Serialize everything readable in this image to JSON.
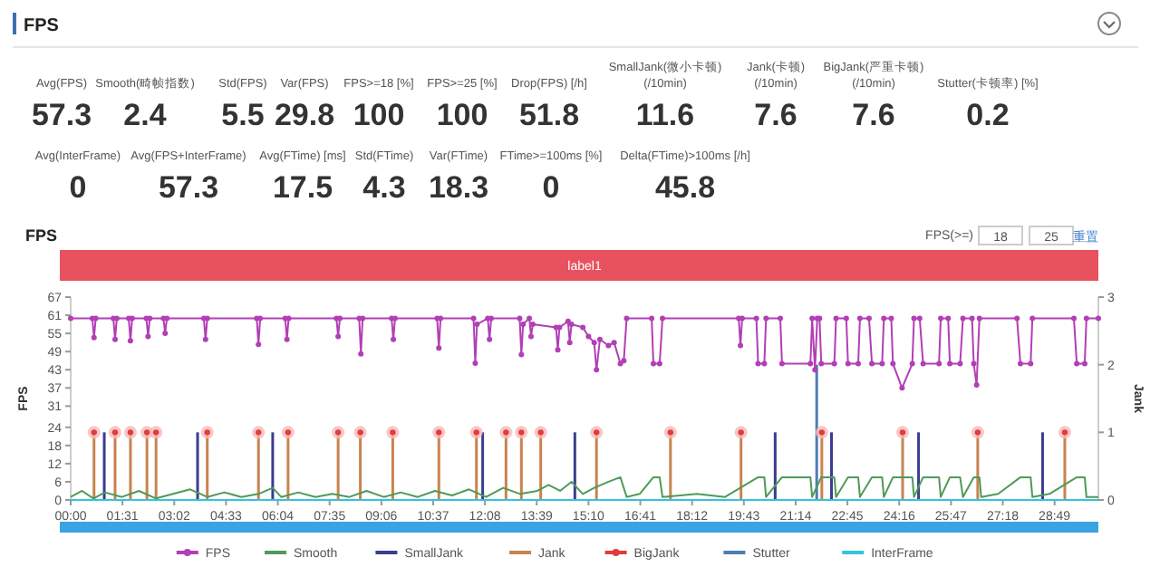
{
  "chart_data": [
    {
      "type": "other",
      "title": "FPS",
      "annotations": [
        "Avg(FPS)",
        "57.3",
        "Smooth(畸帧指数)",
        "2.4",
        "Std(FPS)",
        "5.5",
        "Var(FPS)",
        "29.8",
        "FPS>=18 [%]",
        "100",
        "FPS>=25 [%]",
        "100",
        "Drop(FPS) [/h]",
        "51.8",
        "SmallJank(微小卡顿)\n(/10min)",
        "11.6",
        "Jank(卡顿)\n(/10min)",
        "7.6",
        "BigJank(严重卡顿)\n(/10min)",
        "7.6",
        "Stutter(卡顿率) [%]",
        "0.2",
        "Avg(InterFrame)",
        "0",
        "Avg(FPS+InterFrame)",
        "57.3",
        "Avg(FTime) [ms]",
        "17.5",
        "Std(FTime)",
        "4.3",
        "Var(FTime)",
        "18.3",
        "FTime>=100ms [%]",
        "0",
        "Delta(FTime)>100ms [/h]",
        "45.8"
      ]
    },
    {
      "type": "line",
      "title": "FPS",
      "ylabel": "FPS",
      "y2label": "Jank",
      "legend": "bottom",
      "annotations": [
        "FPS(>=)",
        "18",
        "25",
        "重置",
        "label1"
      ],
      "xlim": [
        0,
        1806
      ],
      "xticks": [
        {
          "value": 0,
          "label": "00:00"
        },
        {
          "value": 91,
          "label": "01:31"
        },
        {
          "value": 182,
          "label": "03:02"
        },
        {
          "value": 273,
          "label": "04:33"
        },
        {
          "value": 364,
          "label": "06:04"
        },
        {
          "value": 455,
          "label": "07:35"
        },
        {
          "value": 546,
          "label": "09:06"
        },
        {
          "value": 637,
          "label": "10:37"
        },
        {
          "value": 728,
          "label": "12:08"
        },
        {
          "value": 819,
          "label": "13:39"
        },
        {
          "value": 910,
          "label": "15:10"
        },
        {
          "value": 1001,
          "label": "16:41"
        },
        {
          "value": 1092,
          "label": "18:12"
        },
        {
          "value": 1183,
          "label": "19:43"
        },
        {
          "value": 1274,
          "label": "21:14"
        },
        {
          "value": 1365,
          "label": "22:45"
        },
        {
          "value": 1456,
          "label": "24:16"
        },
        {
          "value": 1547,
          "label": "25:47"
        },
        {
          "value": 1638,
          "label": "27:18"
        },
        {
          "value": 1729,
          "label": "28:49"
        }
      ],
      "ylim": [
        0,
        67
      ],
      "yticks": [
        0,
        6,
        12,
        18,
        24,
        31,
        37,
        43,
        49,
        55,
        61,
        67
      ],
      "y2lim": [
        0,
        3
      ],
      "y2ticks": [
        0,
        1,
        2,
        3
      ],
      "series": [
        {
          "name": "FPS",
          "type": "line",
          "color": "#b23fb5",
          "marker": "circle",
          "x": [
            0,
            38,
            41,
            44,
            75,
            78,
            81,
            102,
            105,
            108,
            133,
            136,
            139,
            163,
            166,
            169,
            234,
            237,
            240,
            327,
            330,
            333,
            377,
            380,
            383,
            467,
            470,
            473,
            507,
            510,
            513,
            564,
            567,
            570,
            644,
            647,
            650,
            708,
            711,
            714,
            733,
            736,
            739,
            789,
            792,
            795,
            806,
            809,
            812,
            853,
            856,
            859,
            874,
            877,
            880,
            900,
            910,
            920,
            924,
            930,
            945,
            955,
            966,
            972,
            977,
            1021,
            1024,
            1035,
            1040,
            1174,
            1177,
            1180,
            1205,
            1208,
            1219,
            1222,
            1247,
            1250,
            1300,
            1303,
            1308,
            1312,
            1316,
            1319,
            1342,
            1345,
            1363,
            1366,
            1384,
            1387,
            1403,
            1408,
            1426,
            1429,
            1442,
            1445,
            1461,
            1479,
            1482,
            1492,
            1498,
            1526,
            1529,
            1542,
            1545,
            1563,
            1568,
            1584,
            1587,
            1592,
            1597,
            1663,
            1669,
            1687,
            1690,
            1763,
            1768,
            1782,
            1785,
            1806
          ],
          "values": [
            60,
            60,
            53.6,
            60,
            60,
            53,
            60,
            60,
            52.6,
            60,
            60,
            54,
            60,
            60,
            55,
            60,
            60,
            53,
            60,
            60,
            51.4,
            60,
            60,
            53,
            60,
            60,
            54,
            60,
            60,
            48.2,
            60,
            60,
            53,
            60,
            60,
            50.2,
            60,
            60,
            45.2,
            58,
            60,
            53,
            60,
            60,
            48,
            58,
            60,
            54,
            58,
            57,
            49.6,
            57,
            59,
            52,
            58,
            57,
            54,
            52,
            43,
            53,
            51,
            52,
            45,
            46,
            60,
            60,
            45,
            45,
            60,
            60,
            51,
            60,
            60,
            45,
            45,
            60,
            60,
            45,
            45,
            60,
            43,
            60,
            60,
            45,
            45,
            60,
            60,
            45,
            45,
            60,
            60,
            45,
            45,
            60,
            60,
            45,
            37,
            45,
            60,
            60,
            45,
            45,
            60,
            60,
            45,
            45,
            60,
            60,
            45,
            38,
            60,
            60,
            45,
            45,
            60,
            60,
            45,
            45,
            60,
            60
          ]
        },
        {
          "name": "Smooth",
          "type": "line",
          "color": "#4f9a58",
          "x": [
            0,
            20,
            40,
            60,
            90,
            120,
            150,
            180,
            210,
            240,
            270,
            300,
            330,
            355,
            370,
            400,
            430,
            460,
            490,
            520,
            550,
            580,
            610,
            640,
            670,
            700,
            730,
            760,
            790,
            820,
            840,
            860,
            880,
            900,
            920,
            945,
            966,
            977,
            1000,
            1024,
            1035,
            1040,
            1100,
            1150,
            1208,
            1219,
            1222,
            1250,
            1300,
            1303,
            1319,
            1342,
            1345,
            1366,
            1384,
            1387,
            1408,
            1426,
            1429,
            1445,
            1479,
            1482,
            1498,
            1526,
            1529,
            1545,
            1563,
            1568,
            1587,
            1597,
            1600,
            1630,
            1669,
            1687,
            1690,
            1720,
            1768,
            1782,
            1785,
            1806
          ],
          "values": [
            1,
            3,
            0.5,
            2.5,
            1,
            3,
            0.5,
            2,
            3.5,
            1,
            2.5,
            1,
            2,
            4,
            1,
            2.5,
            1,
            2,
            1,
            3,
            1,
            2.5,
            1,
            3,
            1.5,
            3.5,
            1,
            4,
            2,
            3,
            5,
            3,
            6,
            2,
            4,
            6,
            7.5,
            1,
            2,
            7.5,
            7.5,
            1,
            2,
            1,
            7.5,
            7.5,
            1,
            7.5,
            7.5,
            1,
            7.5,
            7.5,
            1,
            7.5,
            7.5,
            1,
            7.5,
            7.5,
            1,
            7.5,
            7.5,
            1,
            7.5,
            7.5,
            1,
            7.5,
            7.5,
            1,
            7.5,
            7.5,
            1,
            2,
            7.5,
            7.5,
            1,
            2,
            7.5,
            7.5,
            1,
            1
          ]
        },
        {
          "name": "SmallJank",
          "type": "bar",
          "axis": "y2",
          "color": "#3b3d8e",
          "x": [
            59,
            223,
            355,
            724,
            886,
            1238,
            1337,
            1490,
            1708
          ],
          "values": [
            1,
            1,
            1,
            1,
            1,
            1,
            1,
            1,
            1
          ]
        },
        {
          "name": "Jank",
          "type": "bar",
          "axis": "y2",
          "color": "#c9834f",
          "x": [
            41,
            78,
            105,
            134,
            150,
            240,
            330,
            382,
            470,
            509,
            566,
            647,
            713,
            765,
            792,
            826,
            924,
            1054,
            1178,
            1320,
            1462,
            1594,
            1747
          ],
          "values": [
            1,
            1,
            1,
            1,
            1,
            1,
            1,
            1,
            1,
            1,
            1,
            1,
            1,
            1,
            1,
            1,
            1,
            1,
            1,
            1,
            1,
            1,
            1
          ]
        },
        {
          "name": "BigJank",
          "type": "scatter",
          "axis": "y2",
          "color": "#e23b3b",
          "marker": "circle",
          "x": [
            41,
            78,
            105,
            134,
            150,
            240,
            330,
            382,
            470,
            509,
            566,
            647,
            713,
            765,
            792,
            826,
            924,
            1054,
            1178,
            1320,
            1462,
            1594,
            1747
          ],
          "values": [
            1,
            1,
            1,
            1,
            1,
            1,
            1,
            1,
            1,
            1,
            1,
            1,
            1,
            1,
            1,
            1,
            1,
            1,
            1,
            1,
            1,
            1,
            1
          ]
        },
        {
          "name": "Stutter",
          "type": "bar",
          "axis": "y2",
          "color": "#4c7db3",
          "x": [
            1311
          ],
          "values": [
            2
          ]
        },
        {
          "name": "InterFrame",
          "type": "line",
          "color": "#35c3dc",
          "x": [
            0,
            1806
          ],
          "values": [
            0,
            0
          ]
        }
      ]
    }
  ]
}
